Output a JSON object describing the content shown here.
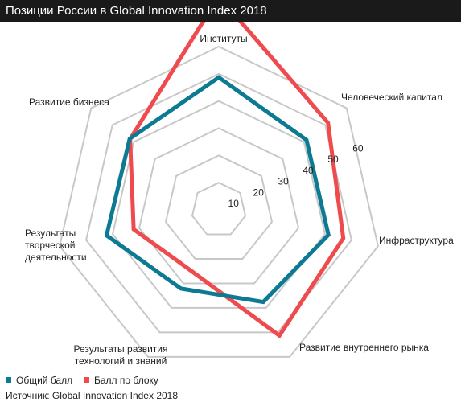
{
  "header": {
    "title": "Позиции России в Global Innovation Index 2018"
  },
  "colors": {
    "series_1": "#0c7a93",
    "series_2": "#ef4a4e",
    "grid": "#c8c8c8",
    "title_bar": "#1a1a1a"
  },
  "chart_data": {
    "type": "radar",
    "title": "Позиции России в Global Innovation Index 2018",
    "categories": [
      "Институты",
      "Человеческий капитал",
      "Инфраструктура",
      "Развитие внутреннего рынка",
      "Результаты развития технологий и знаний",
      "Результаты творческой деятельности",
      "Развитие бизнеса"
    ],
    "range": [
      0,
      60
    ],
    "ticks": [
      10,
      20,
      30,
      40,
      50,
      60
    ],
    "grid": true,
    "legend_position": "bottom-left",
    "series": [
      {
        "name": "Общий балл",
        "values": [
          48.7,
          41.2,
          41.3,
          37.6,
          32.1,
          42.3,
          41.9
        ]
      },
      {
        "name": "Балл по блоку",
        "values": [
          78.5,
          51.3,
          46.9,
          51.3,
          24.5,
          32.1,
          41.7
        ]
      }
    ]
  },
  "source": {
    "text": "Источник: Global Innovation Index 2018"
  }
}
